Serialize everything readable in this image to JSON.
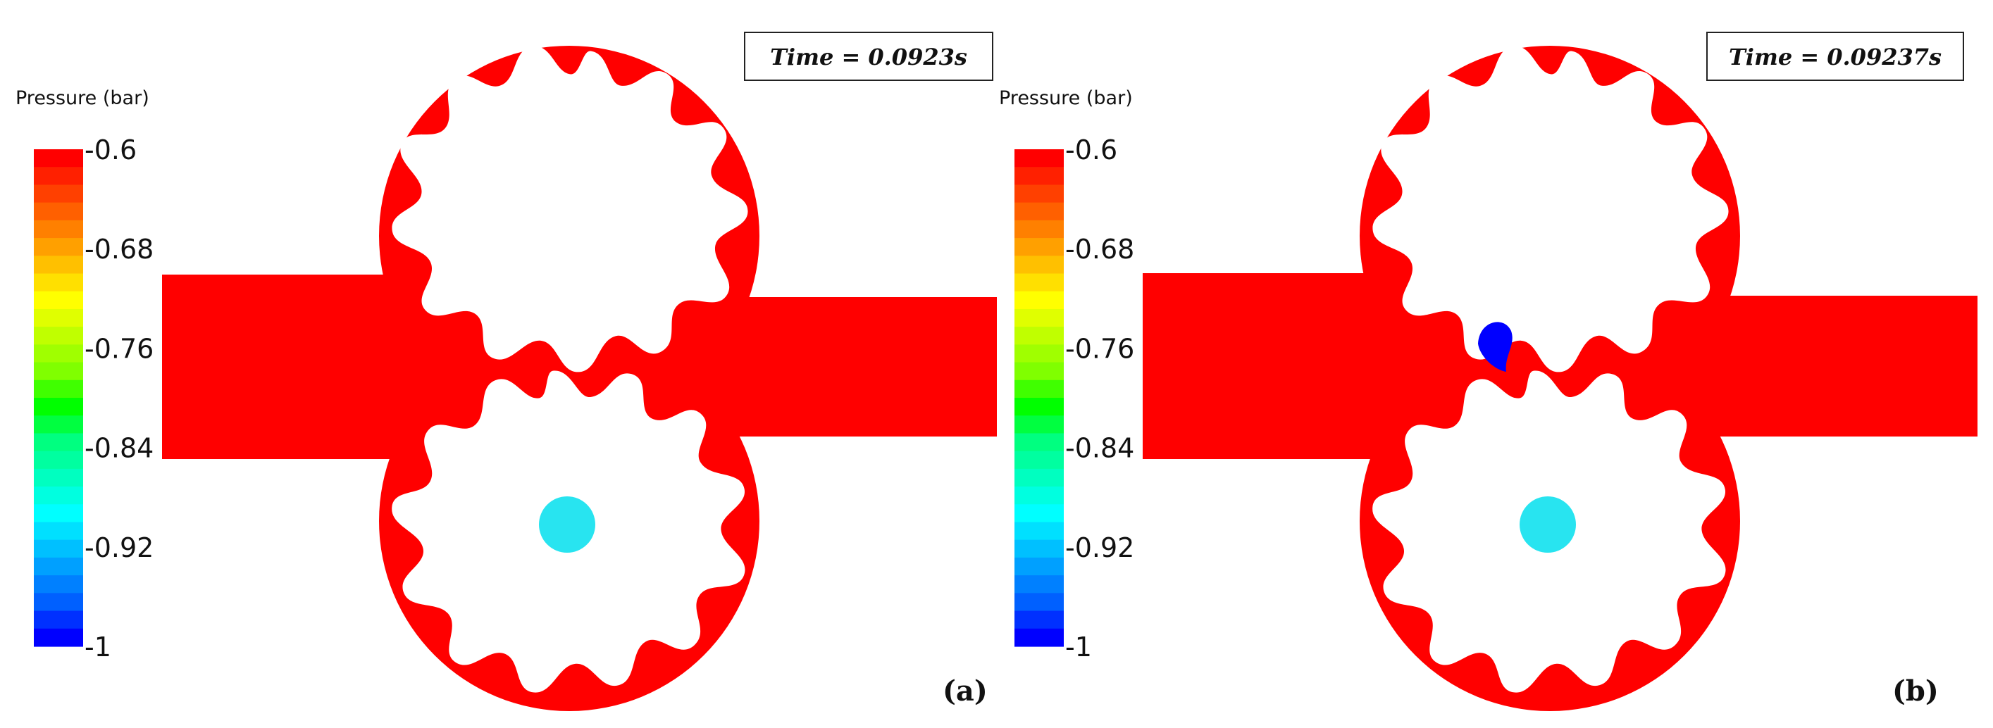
{
  "colorbar": {
    "title": "Pressure (bar)",
    "ticks": [
      "-0.6",
      "-0.68",
      "-0.76",
      "-0.84",
      "-0.92",
      "-1"
    ],
    "colors": [
      "#ff0000",
      "#ff2000",
      "#ff4000",
      "#ff6000",
      "#ff8000",
      "#ffa000",
      "#ffc000",
      "#ffe000",
      "#ffff00",
      "#e0ff00",
      "#c0ff00",
      "#a0ff00",
      "#80ff00",
      "#40ff00",
      "#00ff00",
      "#00ff40",
      "#00ff80",
      "#00ffa0",
      "#00ffc0",
      "#00ffe0",
      "#00ffff",
      "#00e0ff",
      "#00c0ff",
      "#00a0ff",
      "#0080ff",
      "#0060ff",
      "#0030ff",
      "#0000ff"
    ]
  },
  "panels": [
    {
      "tag": "(a)",
      "time_label": "Time = 0.0923s",
      "cavitation_bubble": false
    },
    {
      "tag": "(b)",
      "time_label": "Time = 0.09237s",
      "cavitation_bubble": true
    }
  ],
  "colors": {
    "fluid": "#ff0000",
    "shaft": "#28e4f0",
    "cavity": "#0000ff"
  }
}
